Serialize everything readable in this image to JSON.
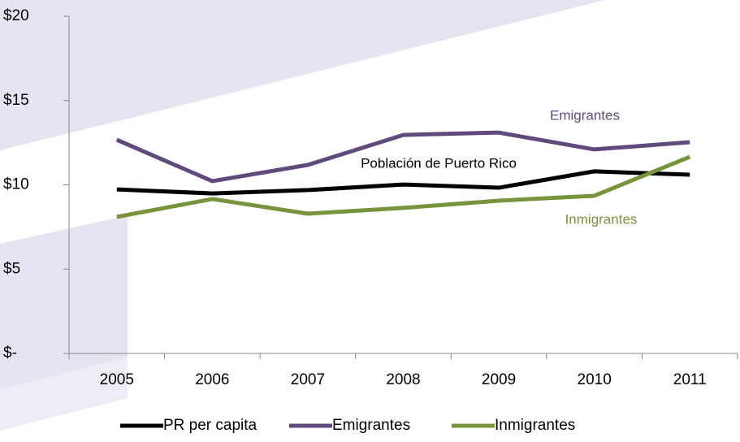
{
  "chart_data": {
    "type": "line",
    "categories": [
      "2005",
      "2006",
      "2007",
      "2008",
      "2009",
      "2010",
      "2011"
    ],
    "series": [
      {
        "name": "PR per capita",
        "color": "#000000",
        "values": [
          9.73,
          9.49,
          9.69,
          10.02,
          9.83,
          10.8,
          10.6
        ]
      },
      {
        "name": "Emigrantes",
        "color": "#604a7b",
        "values": [
          12.67,
          10.22,
          11.18,
          12.96,
          13.1,
          12.1,
          12.53
        ]
      },
      {
        "name": "Inmigrantes",
        "color": "#77933c",
        "values": [
          8.1,
          9.16,
          8.29,
          8.63,
          9.06,
          9.35,
          11.66
        ]
      }
    ],
    "annotations": [
      "Emigrantes",
      "Población de Puerto Rico",
      "Inmigrantes"
    ],
    "ylim": [
      0,
      20
    ],
    "yticks": [
      {
        "value": 0,
        "label": "$-"
      },
      {
        "value": 5,
        "label": "$5"
      },
      {
        "value": 10,
        "label": "$10"
      },
      {
        "value": 15,
        "label": "$15"
      },
      {
        "value": 20,
        "label": "$20"
      }
    ],
    "grid": false,
    "legend": "bottom"
  }
}
